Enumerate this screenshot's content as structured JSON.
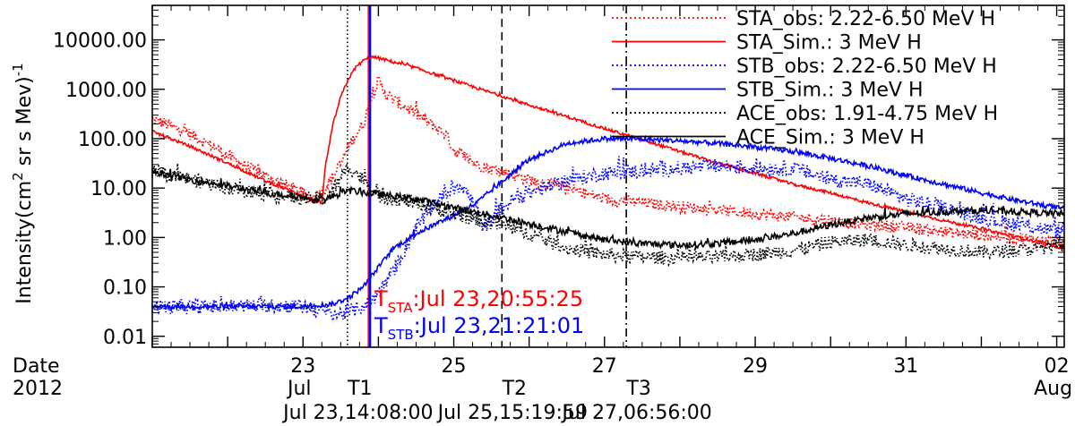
{
  "chart_data": {
    "type": "line",
    "ylabel_main": "Intensity(cm",
    "ylabel_sup1": "2",
    "ylabel_mid": " sr s Mev)",
    "ylabel_sup2": "-1",
    "y_scale": "log",
    "ylim": [
      0.006,
      50000
    ],
    "xlim_days": [
      21.0,
      33.1
    ],
    "y_ticks": [
      {
        "v": 10000,
        "label": "10000.00"
      },
      {
        "v": 1000,
        "label": "1000.00"
      },
      {
        "v": 100,
        "label": "100.00"
      },
      {
        "v": 10,
        "label": "10.00"
      },
      {
        "v": 1,
        "label": "1.00"
      },
      {
        "v": 0.1,
        "label": "0.10"
      },
      {
        "v": 0.01,
        "label": "0.01"
      }
    ],
    "x_date_label": "Date",
    "x_year_label": "2012",
    "x_ticks": [
      {
        "day": 23,
        "label": "23",
        "sub": "Jul"
      },
      {
        "day": 25,
        "label": "25",
        "sub": ""
      },
      {
        "day": 27,
        "label": "27",
        "sub": ""
      },
      {
        "day": 29,
        "label": "29",
        "sub": ""
      },
      {
        "day": 31,
        "label": "31",
        "sub": ""
      },
      {
        "day": 33,
        "label": "02",
        "sub": "Aug"
      }
    ],
    "markers": [
      {
        "name": "T1",
        "day": 23.589,
        "time": "Jul 23,14:08:00",
        "style": "dotted"
      },
      {
        "name": "T2",
        "day": 25.639,
        "time": "Jul 25,15:19:59",
        "style": "dashed"
      },
      {
        "name": "T3",
        "day": 27.289,
        "time": "Jul 27,06:56:00",
        "style": "dashdot"
      }
    ],
    "release_lines": [
      {
        "day": 23.872,
        "color": "#ff0000",
        "sub": "STA",
        "text": ":Jul 23,20:55:25"
      },
      {
        "day": 23.89,
        "color": "#0000ff",
        "sub": "STB",
        "text": ":Jul 23,21:21:01"
      }
    ],
    "series": [
      {
        "name": "STA_obs: 2.22-6.50 MeV H",
        "color": "#ff0000",
        "dash": "dotted",
        "noise": 0.12,
        "x": [
          21.0,
          21.4,
          21.8,
          22.2,
          22.6,
          23.0,
          23.1,
          23.3,
          23.5,
          23.6,
          23.8,
          23.9,
          24.0,
          24.1,
          24.3,
          24.6,
          24.9,
          25.0,
          25.3,
          25.6,
          26.0,
          26.5,
          27.0,
          27.5,
          28.0,
          28.5,
          29.0,
          29.5,
          30.0,
          30.5,
          31.0,
          31.5,
          32.0,
          32.5,
          33.1
        ],
        "y": [
          250,
          150,
          70,
          30,
          15,
          8,
          6,
          10,
          30,
          70,
          200,
          600,
          1500,
          800,
          500,
          250,
          120,
          60,
          30,
          22,
          15,
          10,
          6,
          5,
          4.2,
          3.6,
          3.0,
          2.6,
          2.2,
          1.8,
          1.6,
          1.3,
          1.1,
          1.0,
          0.75
        ]
      },
      {
        "name": "STA_Sim.: 3 MeV H",
        "color": "#ff0000",
        "dash": "solid",
        "noise": 0.03,
        "x": [
          21.0,
          21.5,
          22.0,
          22.5,
          23.0,
          23.15,
          23.25,
          23.3,
          23.4,
          23.5,
          23.6,
          23.7,
          23.8,
          23.9,
          24.0,
          24.5,
          25.0,
          25.5,
          26.0,
          26.5,
          27.0,
          27.5,
          28.0,
          28.5,
          29.0,
          29.5,
          30.0,
          30.5,
          31.0,
          31.5,
          32.0,
          32.5,
          33.1
        ],
        "y": [
          140,
          70,
          32,
          14,
          7,
          5.3,
          5.0,
          30,
          200,
          700,
          1600,
          2800,
          3800,
          4500,
          4300,
          2700,
          1500,
          850,
          480,
          280,
          160,
          95,
          55,
          32,
          20,
          12,
          8,
          5,
          3.3,
          2.2,
          1.5,
          1.0,
          0.6
        ]
      },
      {
        "name": "STB_obs: 2.22-6.50 MeV H",
        "color": "#0000ff",
        "dash": "dotted",
        "noise": 0.15,
        "x": [
          21.0,
          21.5,
          22.0,
          22.5,
          23.0,
          23.3,
          23.5,
          23.7,
          23.9,
          24.1,
          24.3,
          24.5,
          24.7,
          24.9,
          25.1,
          25.3,
          25.4,
          25.6,
          25.8,
          26.0,
          26.5,
          27.0,
          27.5,
          28.0,
          28.5,
          29.0,
          29.5,
          30.0,
          30.5,
          31.0,
          31.5,
          32.0,
          32.5,
          33.1
        ],
        "y": [
          0.04,
          0.04,
          0.04,
          0.042,
          0.04,
          0.03,
          0.028,
          0.035,
          0.05,
          0.12,
          0.4,
          1.5,
          4,
          8,
          12,
          4,
          1.5,
          3.5,
          6,
          8,
          14,
          20,
          22,
          25,
          28,
          25,
          25,
          15,
          12,
          6,
          4,
          2.5,
          1.8,
          1.3
        ]
      },
      {
        "name": "STB_Sim.: 3 MeV H",
        "color": "#0000ff",
        "dash": "solid",
        "noise": 0.05,
        "x": [
          21.0,
          22.0,
          23.0,
          23.4,
          23.6,
          23.8,
          24.0,
          24.2,
          24.5,
          24.8,
          25.0,
          25.3,
          25.6,
          26.0,
          26.5,
          27.0,
          27.5,
          28.0,
          28.5,
          29.0,
          29.5,
          30.0,
          30.5,
          31.0,
          31.5,
          32.0,
          32.5,
          33.1
        ],
        "y": [
          0.04,
          0.04,
          0.04,
          0.045,
          0.06,
          0.1,
          0.25,
          0.6,
          1.2,
          2.0,
          2.8,
          5.0,
          12,
          38,
          80,
          100,
          98,
          90,
          80,
          68,
          55,
          40,
          28,
          18,
          12,
          8,
          5.5,
          3.8
        ]
      },
      {
        "name": "ACE_obs: 1.91-4.75 MeV H",
        "color": "#000000",
        "dash": "dotted",
        "noise": 0.14,
        "x": [
          21.0,
          21.5,
          22.0,
          22.5,
          23.0,
          23.3,
          23.5,
          23.6,
          23.8,
          24.0,
          24.5,
          25.0,
          25.5,
          26.0,
          26.5,
          27.0,
          27.5,
          28.0,
          28.5,
          29.0,
          29.5,
          30.0,
          30.5,
          31.0,
          31.5,
          32.0,
          32.5,
          33.1
        ],
        "y": [
          22,
          15,
          10,
          7.5,
          6,
          6,
          15,
          28,
          15,
          7,
          5,
          3,
          2,
          1.2,
          0.6,
          0.45,
          0.4,
          0.38,
          0.4,
          0.45,
          0.55,
          0.8,
          0.9,
          0.7,
          0.6,
          0.5,
          0.55,
          0.7
        ]
      },
      {
        "name": "ACE_Sim.: 3 MeV H",
        "color": "#000000",
        "dash": "solid",
        "noise": 0.07,
        "x": [
          21.0,
          21.5,
          22.0,
          22.5,
          23.0,
          23.3,
          23.6,
          24.0,
          24.5,
          25.0,
          25.5,
          26.0,
          26.5,
          27.0,
          27.5,
          28.0,
          28.5,
          29.0,
          29.5,
          30.0,
          30.5,
          31.0,
          31.5,
          32.0,
          32.5,
          33.1
        ],
        "y": [
          22,
          15,
          11,
          8,
          6.5,
          6,
          9,
          7.5,
          6,
          4,
          2.8,
          1.9,
          1.3,
          0.9,
          0.75,
          0.7,
          0.75,
          0.9,
          1.2,
          1.8,
          2.5,
          3.0,
          3.3,
          3.5,
          3.3,
          3.0
        ]
      }
    ]
  }
}
